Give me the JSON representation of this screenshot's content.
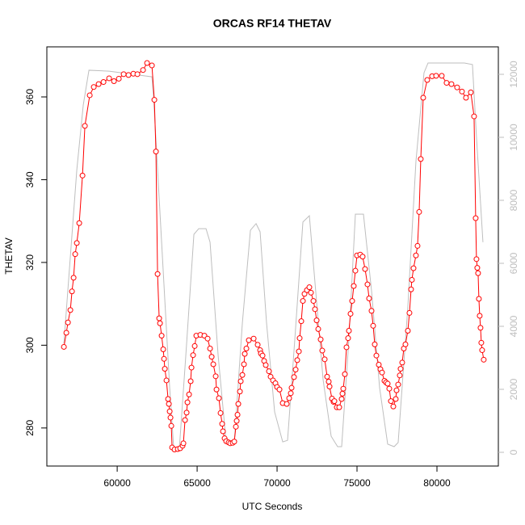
{
  "chart_data": {
    "type": "line",
    "title": "ORCAS RF14 THETAV",
    "xlabel": "UTC Seconds",
    "ylabel": "THETAV",
    "xlim": [
      55600,
      83840
    ],
    "ylim": [
      270.8,
      372.1
    ],
    "y2lim": [
      -436,
      12872
    ],
    "xticks": [
      60000,
      65000,
      70000,
      75000,
      80000
    ],
    "yticks": [
      280,
      300,
      320,
      340,
      360
    ],
    "y2ticks": [
      0,
      2000,
      4000,
      6000,
      8000,
      10000,
      12000
    ],
    "series": [
      {
        "color": "#bebebe",
        "axis": "y2",
        "marker": "none",
        "x": [
          56667,
          57475,
          57879,
          58233,
          59495,
          62172,
          62273,
          62778,
          63283,
          63535,
          63889,
          64293,
          64798,
          65101,
          65555,
          65808,
          66313,
          66818,
          67323,
          67828,
          68333,
          68686,
          68939,
          69343,
          69848,
          70353,
          70656,
          71111,
          71616,
          72019,
          72373,
          72878,
          73383,
          73787,
          74039,
          74494,
          74898,
          75403,
          75908,
          76413,
          76918,
          77322,
          77574,
          78180,
          78685,
          79190,
          79443,
          81715,
          82220,
          82473,
          82877
        ],
        "values": [
          3460,
          8970,
          11030,
          12130,
          12100,
          11920,
          11280,
          6670,
          2050,
          130,
          130,
          3080,
          6920,
          7100,
          7100,
          6670,
          3080,
          310,
          310,
          4100,
          7050,
          7260,
          7000,
          4100,
          1280,
          330,
          380,
          3590,
          7310,
          7510,
          5380,
          2310,
          510,
          180,
          180,
          3590,
          7560,
          7560,
          5130,
          2050,
          260,
          180,
          310,
          4620,
          9230,
          12050,
          12360,
          12360,
          12310,
          10000,
          6670
        ]
      },
      {
        "color": "#ff0000",
        "axis": "y",
        "marker": "circle",
        "x": [
          56667,
          56819,
          56920,
          57071,
          57172,
          57273,
          57374,
          57475,
          57627,
          57829,
          57980,
          58283,
          58535,
          58838,
          59142,
          59495,
          59798,
          60101,
          60404,
          60707,
          61010,
          61263,
          61616,
          61869,
          62172,
          62323,
          62424,
          62525,
          62626,
          62677,
          62778,
          62879,
          62929,
          62980,
          63081,
          63182,
          63232,
          63283,
          63333,
          63384,
          63434,
          63586,
          63788,
          63939,
          64091,
          64141,
          64242,
          64343,
          64394,
          64495,
          64596,
          64646,
          64747,
          64848,
          64949,
          65202,
          65454,
          65656,
          65808,
          65909,
          66010,
          66161,
          66212,
          66363,
          66464,
          66565,
          66616,
          66717,
          66818,
          66969,
          67070,
          67222,
          67323,
          67424,
          67474,
          67525,
          67575,
          67676,
          67727,
          67828,
          67929,
          67979,
          68080,
          68232,
          68535,
          68787,
          68939,
          68989,
          69090,
          69191,
          69292,
          69494,
          69595,
          69747,
          69898,
          69999,
          70151,
          70353,
          70605,
          70757,
          70858,
          70908,
          71060,
          71161,
          71262,
          71363,
          71413,
          71514,
          71615,
          71716,
          71868,
          72019,
          72120,
          72272,
          72373,
          72474,
          72575,
          72726,
          72827,
          72979,
          73130,
          73231,
          73282,
          73433,
          73534,
          73585,
          73736,
          73888,
          74039,
          74090,
          74140,
          74241,
          74342,
          74443,
          74494,
          74595,
          74696,
          74797,
          74898,
          74999,
          75201,
          75352,
          75504,
          75655,
          75756,
          75908,
          76009,
          76110,
          76211,
          76362,
          76463,
          76564,
          76716,
          76817,
          76918,
          77019,
          77120,
          77271,
          77423,
          77473,
          77574,
          77675,
          77726,
          77827,
          77928,
          78029,
          78180,
          78281,
          78382,
          78433,
          78534,
          78685,
          78786,
          78887,
          78988,
          79140,
          79392,
          79695,
          79948,
          80301,
          80604,
          80907,
          81261,
          81564,
          81816,
          82119,
          82321,
          82422,
          82472,
          82523,
          82573,
          82624,
          82674,
          82725,
          82775,
          82826,
          82927
        ],
        "values": [
          299.6,
          303,
          305.5,
          308.5,
          313,
          316.3,
          322,
          324.7,
          329.5,
          341,
          353,
          360.4,
          362.4,
          363.1,
          363.6,
          364.5,
          363.8,
          364.4,
          365.5,
          365.3,
          365.6,
          365.5,
          366.5,
          368.2,
          367.6,
          359.3,
          346.8,
          317.2,
          306.5,
          305.3,
          302.3,
          299,
          296.7,
          294.3,
          291.5,
          287,
          285.8,
          284,
          282.5,
          280.5,
          275.3,
          274.8,
          274.9,
          275.1,
          275.7,
          276.3,
          281.9,
          283.7,
          286.2,
          288.1,
          291.3,
          294.6,
          297.6,
          299.8,
          302.3,
          302.5,
          302.3,
          301.6,
          299.2,
          297.2,
          295.4,
          292.5,
          289.3,
          287.2,
          283.6,
          281,
          279.2,
          277.5,
          276.8,
          276.5,
          276.3,
          276.4,
          276.7,
          280.3,
          281.7,
          283.2,
          285.8,
          288.8,
          291.3,
          292.8,
          295.4,
          297.9,
          299.2,
          301.2,
          301.6,
          300.1,
          298.8,
          298,
          297.5,
          296.2,
          295.2,
          293.7,
          292.4,
          291.5,
          290.8,
          289.9,
          289.3,
          286,
          285.8,
          287.2,
          288.4,
          289.7,
          292.3,
          294.1,
          296.4,
          298.5,
          301.7,
          305.8,
          310.7,
          312.4,
          313.3,
          314,
          312.7,
          310.7,
          308.7,
          306,
          303.9,
          301.4,
          298.7,
          296.6,
          292.4,
          291.2,
          290,
          287.1,
          286.3,
          286.5,
          285,
          285,
          287,
          288.3,
          289.5,
          293,
          299.5,
          301.7,
          303.5,
          307.6,
          310.7,
          314.3,
          318,
          321.7,
          321.9,
          321.4,
          318.4,
          314.7,
          311.3,
          308.3,
          304.7,
          300.2,
          297.5,
          295.3,
          294.2,
          293.4,
          291.4,
          291,
          290.7,
          289.5,
          286.5,
          285.2,
          287,
          289.1,
          290.5,
          292.7,
          294.3,
          295.8,
          299.2,
          300.2,
          303.5,
          307.8,
          313.5,
          315.8,
          318.6,
          321.7,
          324,
          332.2,
          345,
          359.8,
          364.1,
          365,
          365.1,
          365.1,
          363.4,
          363.1,
          362.3,
          361.3,
          359.8,
          361.1,
          355.3,
          330.7,
          320.8,
          318.7,
          317.4,
          311.2,
          307.1,
          304.2,
          300.6,
          298.8,
          296.5
        ]
      }
    ]
  }
}
